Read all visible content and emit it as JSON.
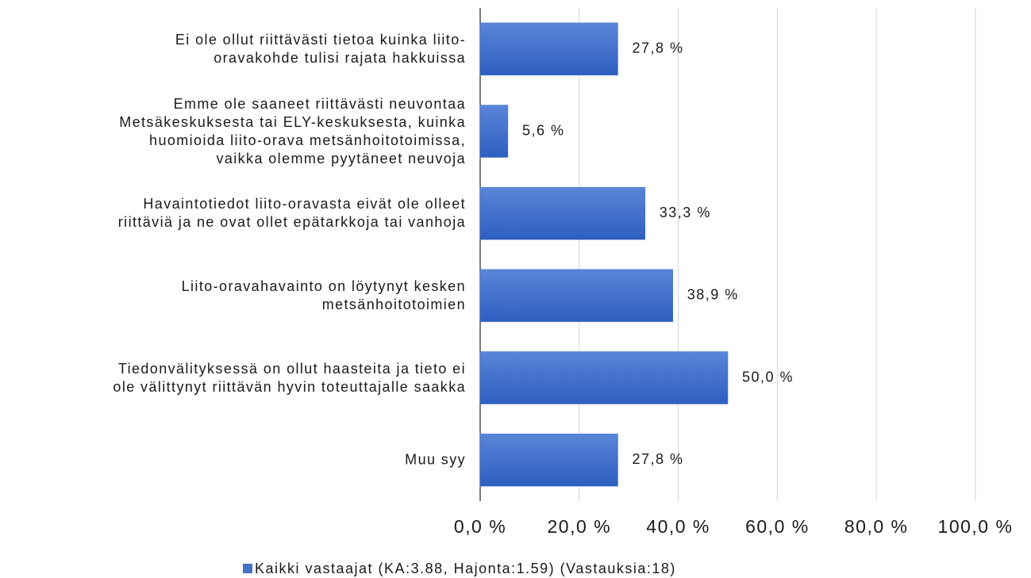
{
  "chart_data": {
    "type": "bar",
    "orientation": "horizontal",
    "categories": [
      "Ei ole ollut riittävästi tietoa kuinka liito-\noravakohde tulisi rajata hakkuissa",
      "Emme ole saaneet riittävästi neuvontaa\nMetsäkeskuksesta tai ELY-keskuksesta, kuinka\nhuomioida liito-orava metsänhoitotoimissa,\nvaikka olemme pyytäneet neuvoja",
      "Havaintotiedot liito-oravasta eivät ole olleet\nriittäviä ja ne ovat ollet epätarkkoja tai vanhoja",
      "Liito-oravahavainto on löytynyt kesken\nmetsänhoitotoimien",
      "Tiedonvälityksessä on ollut haasteita ja tieto ei\nole välittynyt riittävän hyvin toteuttajalle saakka",
      "Muu syy"
    ],
    "series": [
      {
        "name": "Kaikki vastaajat (KA:3.88, Hajonta:1.59) (Vastauksia:18)",
        "color": "#4472c4",
        "values": [
          27.8,
          5.6,
          33.3,
          38.9,
          50.0,
          27.8
        ],
        "value_labels": [
          "27,8 %",
          "5,6 %",
          "33,3 %",
          "38,9 %",
          "50,0 %",
          "27,8 %"
        ]
      }
    ],
    "xlim": [
      0,
      100
    ],
    "xticks": [
      {
        "value": 0,
        "label": "0,0 %"
      },
      {
        "value": 20,
        "label": "20,0 %"
      },
      {
        "value": 40,
        "label": "40,0 %"
      },
      {
        "value": 60,
        "label": "60,0 %"
      },
      {
        "value": 80,
        "label": "80,0 %"
      },
      {
        "value": 100,
        "label": "100,0 %"
      }
    ],
    "grid": true,
    "legend": "bottom"
  }
}
